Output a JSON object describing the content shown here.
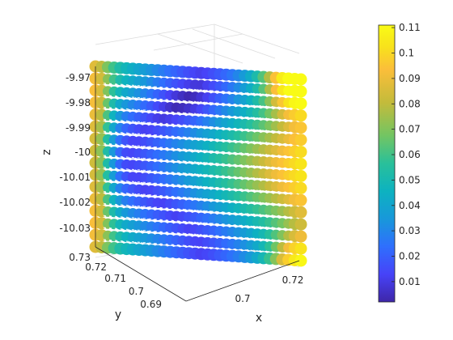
{
  "chart_data": {
    "type": "scatter3",
    "title": "",
    "xlabel": "x",
    "ylabel": "y",
    "zlabel": "z",
    "x_ticks": [
      "0.7",
      "0.72"
    ],
    "y_ticks": [
      "0.73",
      "0.72",
      "0.71",
      "0.7",
      "0.69"
    ],
    "z_ticks": [
      "-9.97",
      "-9.98",
      "-9.99",
      "-10",
      "-10.01",
      "-10.02",
      "-10.03"
    ],
    "zlim": [
      -10.035,
      -9.966
    ],
    "colorbar": {
      "range": [
        0.002,
        0.111
      ],
      "ticks": [
        "0.11",
        "0.1",
        "0.09",
        "0.08",
        "0.07",
        "0.06",
        "0.05",
        "0.04",
        "0.03",
        "0.02",
        "0.01"
      ],
      "colormap": "parula"
    },
    "grid": "on",
    "points_description_value_range": [
      0.002,
      0.111
    ]
  },
  "colors": {
    "parula": [
      "#3e26a8",
      "#4743f8",
      "#2f6ffd",
      "#1898da",
      "#0db2c0",
      "#29c09a",
      "#72c563",
      "#c3bb3b",
      "#fbbe3a",
      "#f8e11c",
      "#f9fb15"
    ],
    "axis": "#262626",
    "grid": "#dcdcdc"
  }
}
